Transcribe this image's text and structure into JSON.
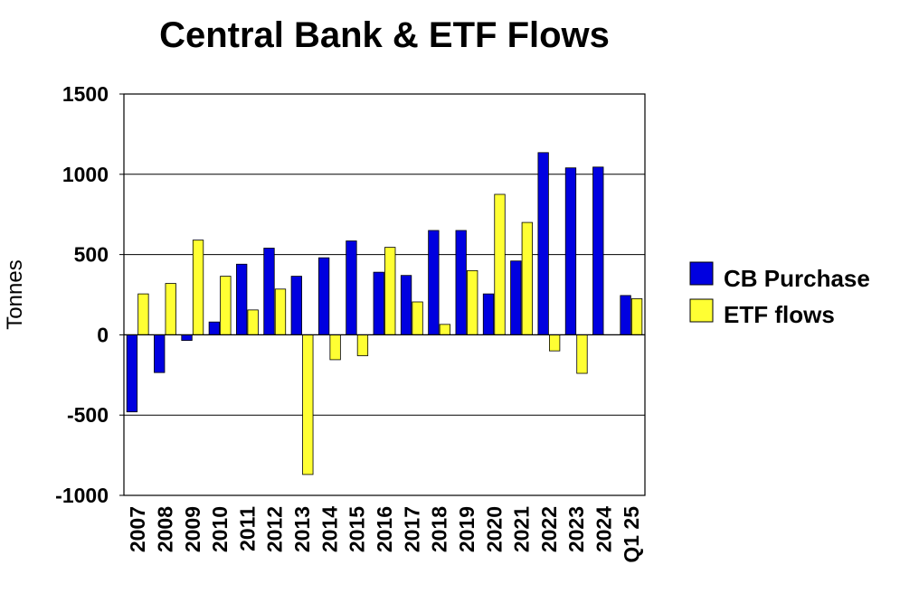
{
  "chart_data": {
    "type": "bar",
    "title": "Central Bank & ETF Flows",
    "ylabel": "Tonnes",
    "xlabel": "",
    "ylim": [
      -1000,
      1500
    ],
    "yticks": [
      "1500",
      "1000",
      "500",
      "0",
      "-500",
      "-1000"
    ],
    "ytick_values": [
      1500,
      1000,
      500,
      0,
      -500,
      -1000
    ],
    "categories": [
      "2007",
      "2008",
      "2009",
      "2010",
      "2011",
      "2012",
      "2013",
      "2014",
      "2015",
      "2016",
      "2017",
      "2018",
      "2019",
      "2020",
      "2021",
      "2022",
      "2023",
      "2024",
      "Q1 25"
    ],
    "series": [
      {
        "name": "CB Purchase",
        "color": "#0000e0",
        "values": [
          -480,
          -235,
          -35,
          80,
          440,
          540,
          365,
          480,
          585,
          390,
          370,
          650,
          650,
          255,
          460,
          1135,
          1040,
          1045,
          245
        ]
      },
      {
        "name": "ETF flows",
        "color": "#ffff33",
        "values": [
          255,
          320,
          590,
          365,
          155,
          285,
          -870,
          -155,
          -130,
          545,
          205,
          65,
          400,
          875,
          700,
          -100,
          -240,
          0,
          225
        ]
      }
    ],
    "grid": "horizontal",
    "legend_position": "right"
  }
}
